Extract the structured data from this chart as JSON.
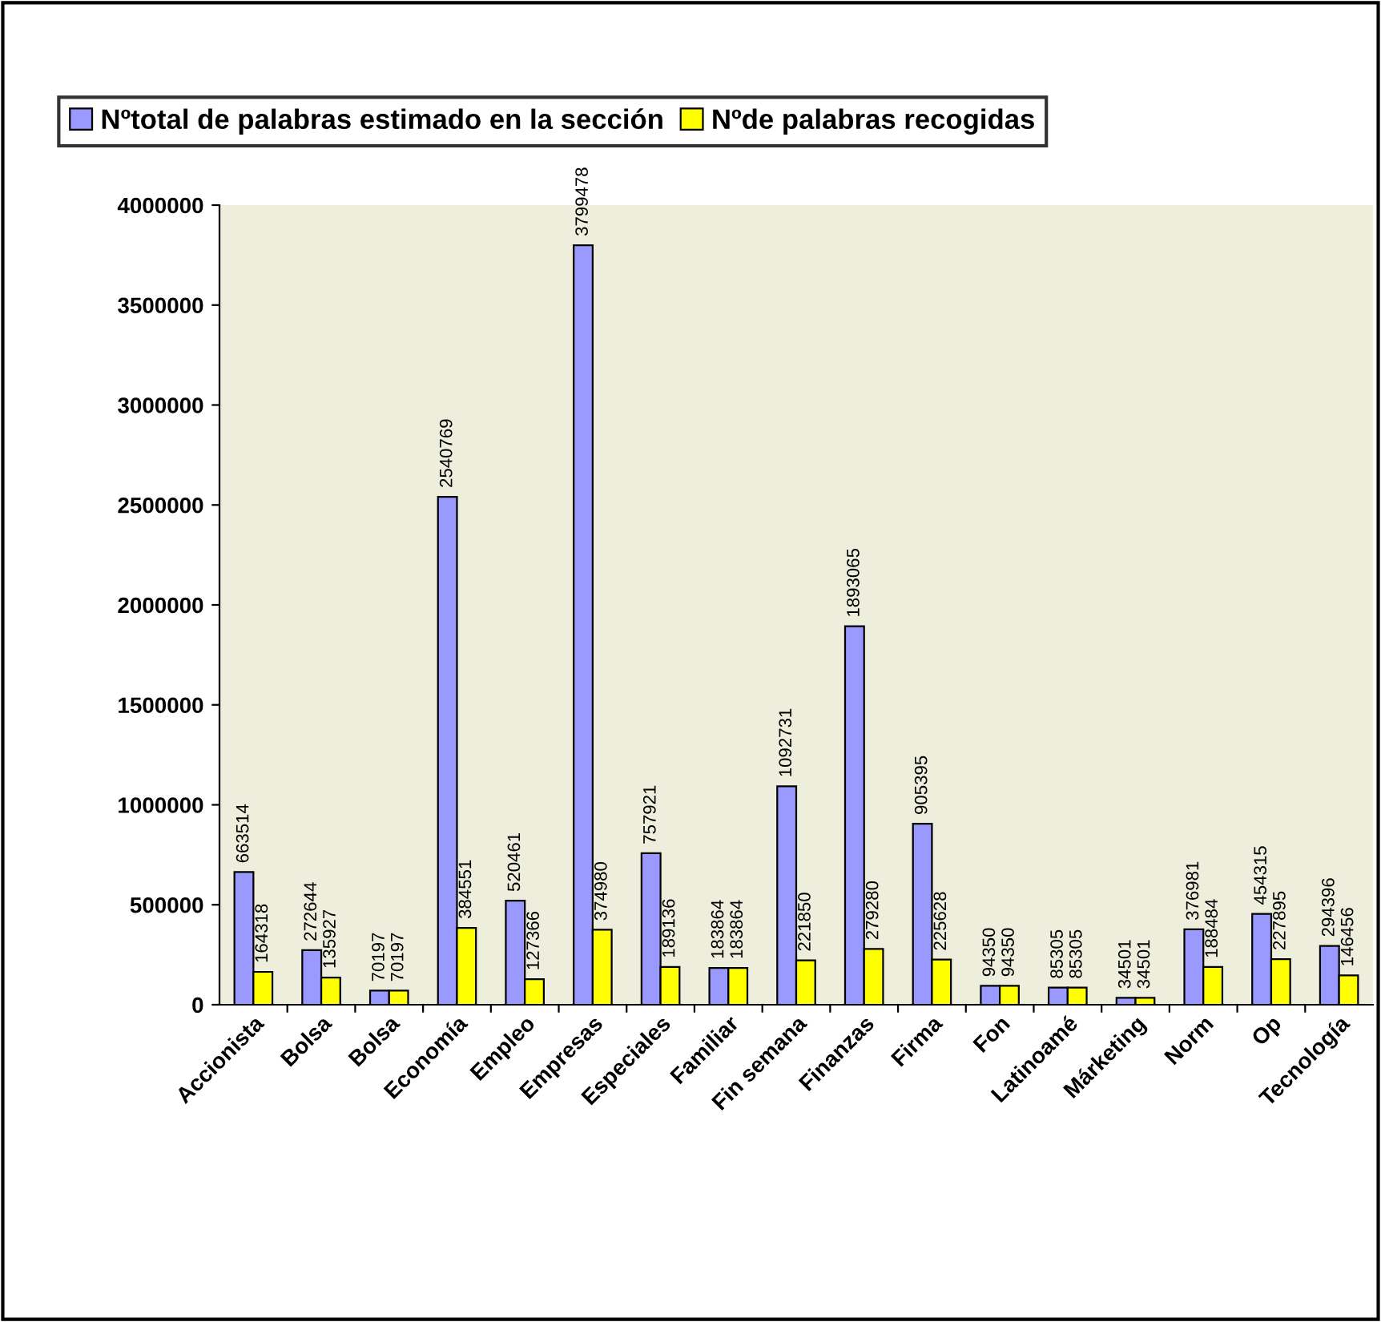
{
  "chart_data": {
    "type": "bar",
    "categories": [
      "Accionista",
      "Bolsa",
      "Bolsa",
      "Economía",
      "Empleo",
      "Empresas",
      "Especiales",
      "Familiar",
      "Fin semana",
      "Finanzas",
      "Firma",
      "Fon",
      "Latinoamé",
      "Márketing",
      "Norm",
      "Op",
      "Tecnología"
    ],
    "series": [
      {
        "name": "Nºtotal de palabras estimado en la sección",
        "color": "#9999ff",
        "values": [
          663514,
          272644,
          70197,
          2540769,
          520461,
          3799478,
          757921,
          183864,
          1092731,
          1893065,
          905395,
          94350,
          85305,
          34501,
          376981,
          454315,
          294396
        ]
      },
      {
        "name": "Nºde palabras recogidas",
        "color": "#ffff00",
        "values": [
          164318,
          135927,
          70197,
          384551,
          127366,
          374980,
          189136,
          183864,
          221850,
          279280,
          225628,
          94350,
          85305,
          34501,
          188484,
          227895,
          146456
        ]
      }
    ],
    "ylim": [
      0,
      4000000
    ],
    "yticks": [
      0,
      500000,
      1000000,
      1500000,
      2000000,
      2500000,
      3000000,
      3500000,
      4000000
    ],
    "data_labels": true,
    "legend": "top",
    "grid": false
  }
}
